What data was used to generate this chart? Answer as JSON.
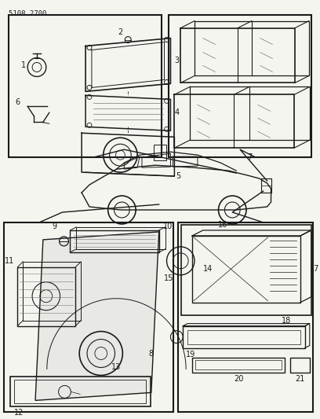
{
  "title": "5108 2700",
  "bg": "#f5f5f0",
  "lc": "#1a1a1a",
  "fig_width": 4.08,
  "fig_height": 5.33,
  "dpi": 100
}
